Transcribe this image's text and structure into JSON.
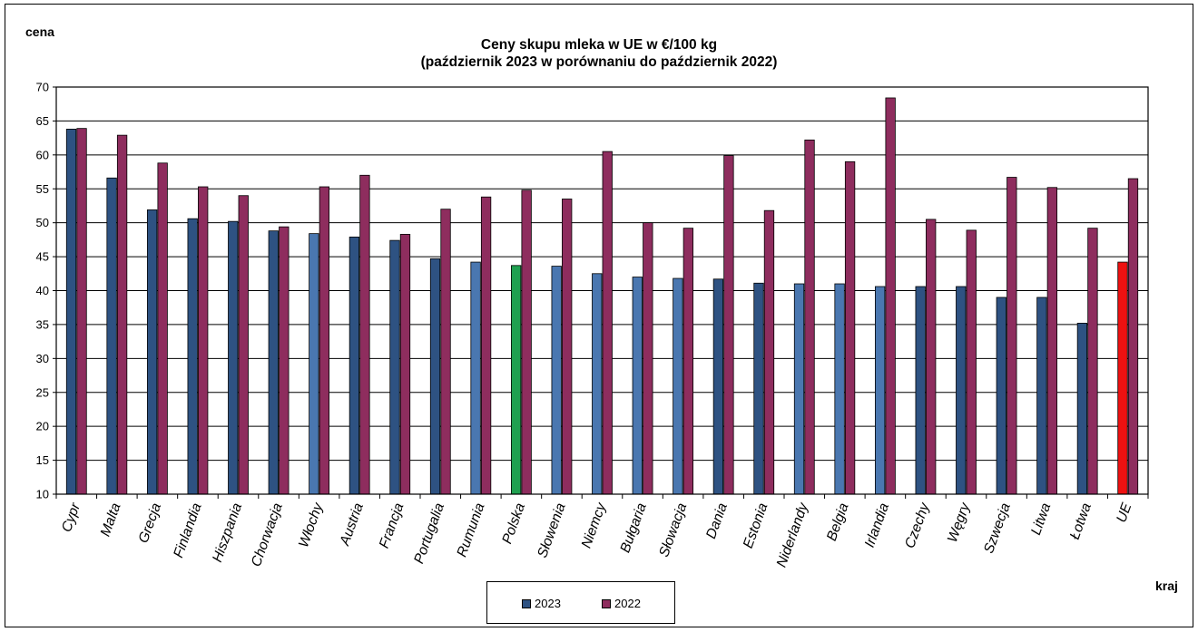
{
  "header": {
    "ylabel": "cena",
    "title_line1": "Ceny skupu mleka  w UE w €/100 kg",
    "title_line2": "(październik 2023  w porównaniu do październik 2022)",
    "xlabel": "kraj"
  },
  "legend": {
    "item1": "2023",
    "item2": "2022"
  },
  "colors": {
    "bar_2023": "#2E5282",
    "bar_2023_light": "#4A77B0",
    "bar_2022": "#8E2D5E",
    "poland": "#1FA050",
    "eu": "#EE1111"
  },
  "chart_data": {
    "type": "bar",
    "categories": [
      "Cypr",
      "Malta",
      "Grecja",
      "Finlandia",
      "Hiszpania",
      "Chorwacja",
      "Włochy",
      "Austria",
      "Francja",
      "Portugalia",
      "Rumunia",
      "Polska",
      "Słowenia",
      "Niemcy",
      "Bułgaria",
      "Słowacja",
      "Dania",
      "Estonia",
      "Niderlandy",
      "Belgia",
      "Irlandia",
      "Czechy",
      "Węgry",
      "Szwecja",
      "Litwa",
      "Łotwa",
      "UE"
    ],
    "series": [
      {
        "name": "2023",
        "values": [
          63.8,
          56.6,
          51.9,
          50.6,
          50.2,
          48.8,
          48.4,
          47.9,
          47.4,
          44.7,
          44.2,
          43.7,
          43.6,
          42.5,
          42.0,
          41.8,
          41.7,
          41.1,
          41.0,
          41.0,
          40.6,
          40.6,
          40.6,
          39.0,
          39.0,
          35.2,
          44.2
        ],
        "bar_styles": [
          "dark",
          "dark",
          "dark",
          "dark",
          "dark",
          "dark",
          "light",
          "dark",
          "dark",
          "dark",
          "light",
          "poland",
          "light",
          "light",
          "light",
          "light",
          "dark",
          "dark",
          "light",
          "light",
          "light",
          "dark",
          "dark",
          "dark",
          "dark",
          "dark",
          "eu"
        ]
      },
      {
        "name": "2022",
        "values": [
          63.9,
          62.9,
          58.8,
          55.3,
          54.0,
          49.4,
          55.3,
          57.0,
          48.3,
          52.0,
          53.8,
          54.8,
          53.5,
          60.5,
          50.0,
          49.2,
          59.9,
          51.8,
          62.2,
          59.0,
          68.4,
          50.5,
          48.9,
          56.7,
          55.2,
          49.2,
          56.5
        ]
      }
    ],
    "ylim": [
      10,
      70
    ],
    "yticks": [
      "10",
      "15",
      "20",
      "25",
      "30",
      "35",
      "40",
      "45",
      "50",
      "55",
      "60",
      "65",
      "70"
    ],
    "grid": true,
    "legend_position": "bottom"
  }
}
